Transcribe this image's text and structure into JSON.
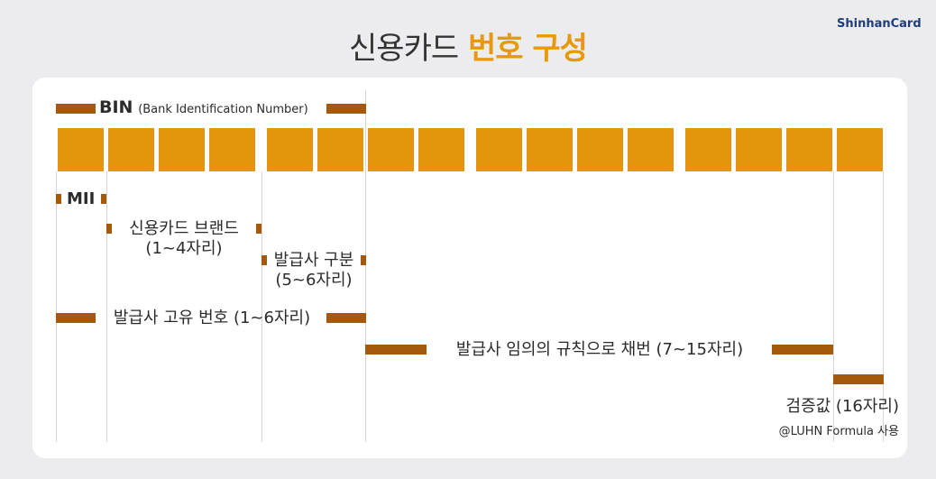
{
  "title_plain": "신용카드",
  "title_accent": "번호 구성",
  "brand": "ShinhanCard",
  "bin": {
    "label": "BIN",
    "sub": "(Bank Identification Number)"
  },
  "digits": [
    "",
    "",
    "",
    "",
    "",
    "",
    "",
    "",
    "",
    "",
    "",
    "",
    "",
    "",
    "",
    ""
  ],
  "labels": {
    "mii": "MII",
    "brand_line1": "신용카드 브랜드",
    "brand_line2": "(1~4자리)",
    "issuer_line1": "발급사 구분",
    "issuer_line2": "(5~6자리)",
    "issuer_id": "발급사 고유 번호 (1~6자리)",
    "account": "발급사 임의의 규칙으로 채번 (7~15자리)",
    "check_line1": "검증값 (16자리)",
    "check_line2": "@LUHN Formula 사용"
  },
  "colors": {
    "digit": "#e3960a",
    "bar": "#a35a0c",
    "accent": "#e8980a"
  }
}
